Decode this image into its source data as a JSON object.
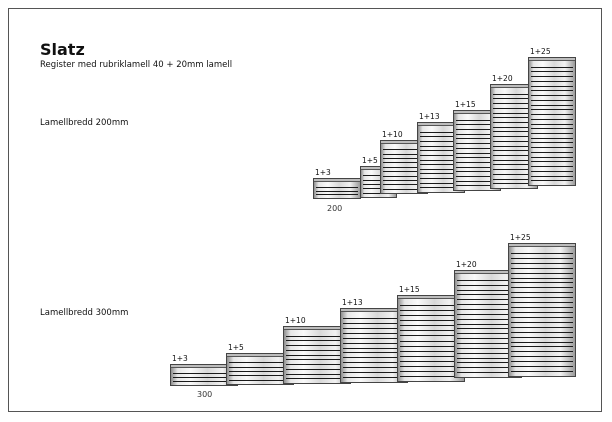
{
  "title": "Slatz",
  "subtitle": "Register med rubriklamell 40 + 20mm lamell",
  "rows": [
    {
      "label": "Lamellbredd 200mm",
      "width_label": "200",
      "items": [
        {
          "label": "1+3",
          "slats": 3
        },
        {
          "label": "1+5",
          "slats": 5
        },
        {
          "label": "1+10",
          "slats": 10
        },
        {
          "label": "1+13",
          "slats": 13
        },
        {
          "label": "1+15",
          "slats": 15
        },
        {
          "label": "1+20",
          "slats": 20
        },
        {
          "label": "1+25",
          "slats": 25
        }
      ]
    },
    {
      "label": "Lamellbredd 300mm",
      "width_label": "300",
      "items": [
        {
          "label": "1+3",
          "slats": 3
        },
        {
          "label": "1+5",
          "slats": 5
        },
        {
          "label": "1+10",
          "slats": 10
        },
        {
          "label": "1+13",
          "slats": 13
        },
        {
          "label": "1+15",
          "slats": 15
        },
        {
          "label": "1+20",
          "slats": 20
        },
        {
          "label": "1+25",
          "slats": 25
        }
      ]
    }
  ]
}
